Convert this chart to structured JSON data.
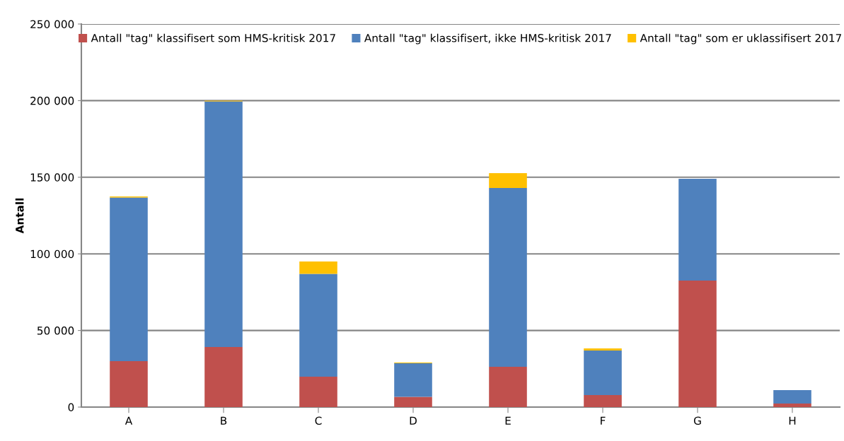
{
  "chart_data": {
    "type": "bar",
    "stacked": true,
    "ylabel": "Antall",
    "categories": [
      "A",
      "B",
      "C",
      "D",
      "E",
      "F",
      "G",
      "H"
    ],
    "series": [
      {
        "name": "Antall \"tag\" klassifisert som HMS-kritisk 2017",
        "color": "#c0504d",
        "values": [
          30000,
          39200,
          19800,
          6700,
          26300,
          7800,
          82600,
          2300
        ]
      },
      {
        "name": "Antall \"tag\" klassifisert, ikke HMS-kritisk 2017",
        "color": "#4f81bd",
        "values": [
          106800,
          160300,
          67100,
          21900,
          116700,
          29100,
          66400,
          8800
        ]
      },
      {
        "name": "Antall \"tag\" som er uklassifisert 2017",
        "color": "#ffc000",
        "values": [
          700,
          500,
          8100,
          500,
          9700,
          1400,
          0,
          0
        ]
      }
    ],
    "ylim": [
      0,
      250000
    ],
    "yticks": [
      0,
      {
        "value": 50000,
        "label": "50 000"
      },
      {
        "value": 100000,
        "label": "100 000"
      },
      {
        "value": 150000,
        "label": "150 000"
      },
      {
        "value": 200000,
        "label": "200 000"
      },
      {
        "value": 250000,
        "label": "250 000"
      }
    ],
    "grid": "y",
    "legend": "top"
  }
}
